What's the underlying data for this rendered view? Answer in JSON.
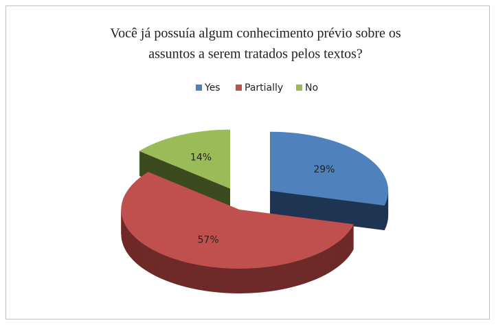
{
  "chart_data": {
    "type": "pie3d",
    "title": [
      "Você já possuía algum conhecimento prévio sobre os",
      "assuntos a serem tratados pelos textos?"
    ],
    "categories": [
      "Yes",
      "Partially",
      "No"
    ],
    "values": [
      29,
      57,
      14
    ],
    "value_labels": [
      "29%",
      "57%",
      "14%"
    ],
    "colors": [
      "#4f81bd",
      "#c0504d",
      "#9bbb59"
    ],
    "side_colors": [
      "#1f3552",
      "#6e2a28",
      "#3c4a20"
    ],
    "legend": "top"
  }
}
